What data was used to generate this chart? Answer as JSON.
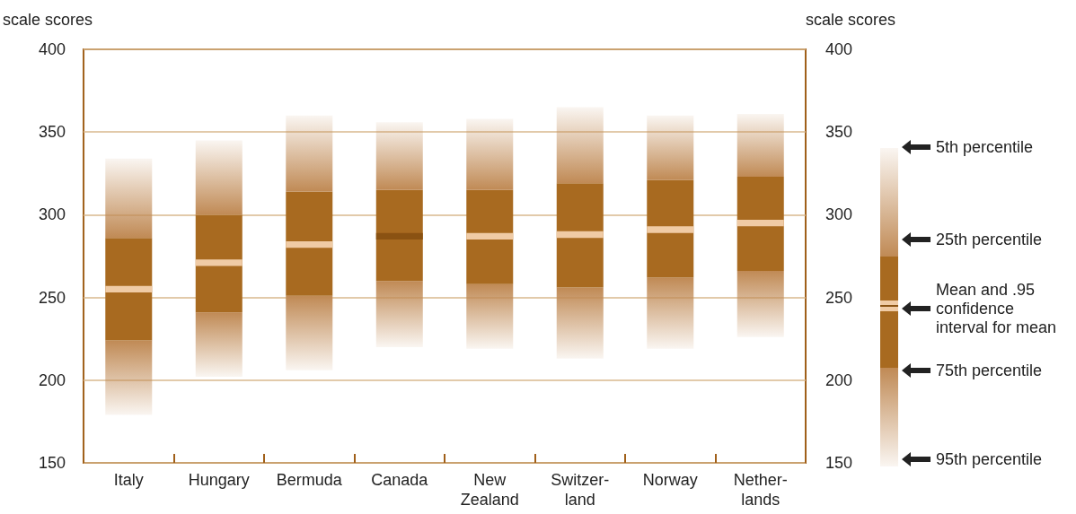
{
  "chart_data": {
    "type": "bar",
    "categories": [
      "Italy",
      "Hungary",
      "Bermuda",
      "Canada",
      "New\nZealand",
      "Switzer-\nland",
      "Norway",
      "Nether-\nlands"
    ],
    "series": [
      {
        "color": "#c08a55",
        "base": [
          179,
          202,
          206,
          220,
          219,
          213,
          219,
          226
        ],
        "values": [
          45,
          39,
          45,
          40,
          39,
          43,
          43,
          40
        ]
      },
      {
        "color": "#a86a20",
        "base": [
          224,
          241,
          251,
          260,
          258,
          256,
          262,
          266
        ],
        "values": [
          62,
          59,
          63,
          55,
          57,
          63,
          59,
          57
        ]
      },
      {
        "color": "#c08a55",
        "base": [
          286,
          300,
          314,
          315,
          315,
          319,
          321,
          323
        ],
        "values": [
          48,
          45,
          46,
          41,
          43,
          46,
          39,
          38
        ]
      },
      {
        "base": [
          253,
          269,
          280,
          285,
          285,
          286,
          289,
          293
        ],
        "values": [
          4,
          4,
          4,
          4,
          4,
          4,
          4,
          4
        ],
        "colors": [
          "#f0cba5",
          "#f0cba5",
          "#f0cba5",
          "#8a5212",
          "#f0cba5",
          "#f0cba5",
          "#f0cba5",
          "#f0cba5"
        ]
      }
    ],
    "ylabel": "scale scores",
    "y2label": "scale scores",
    "ylim": [
      150,
      400
    ],
    "yticks": [
      150,
      200,
      250,
      300,
      350,
      400
    ],
    "y2lim": [
      150,
      400
    ],
    "y2ticks": [
      150,
      200,
      250,
      300,
      350,
      400
    ],
    "grid": "y",
    "annotations": [
      "5th percentile",
      "25th percentile",
      "Mean and .95\nconfidence\ninterval for mean",
      "75th percentile",
      "95th percentile"
    ]
  }
}
